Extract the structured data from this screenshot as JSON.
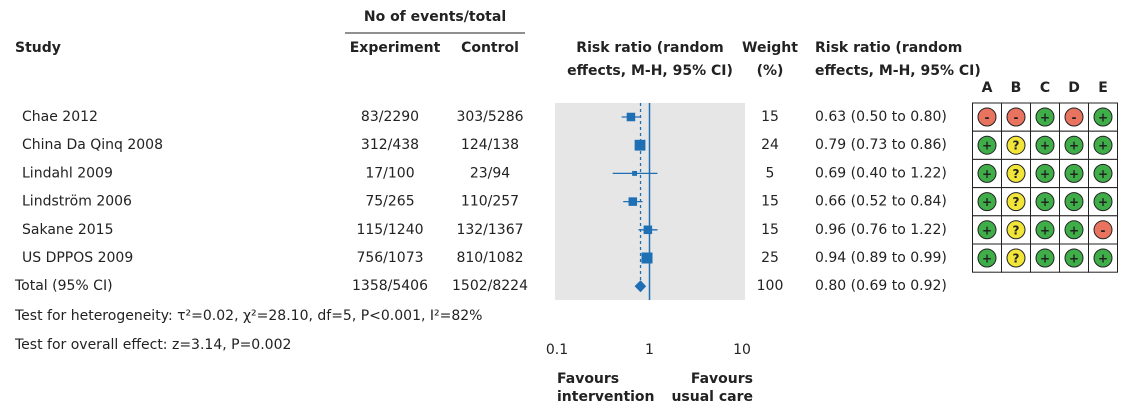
{
  "chart_data": {
    "type": "forest",
    "header_group": "No of events/total",
    "headers": {
      "study": "Study",
      "experiment": "Experiment",
      "control": "Control",
      "plot": [
        "Risk ratio (random",
        "effects, M-H, 95% CI)"
      ],
      "weight": [
        "Weight",
        "(%)"
      ],
      "estimate": [
        "Risk ratio (random",
        "effects, M-H, 95% CI)"
      ],
      "bias_domains": [
        "A",
        "B",
        "C",
        "D",
        "E"
      ]
    },
    "studies": [
      "Chae 2012",
      "China Da Qinq 2008",
      "Lindahl 2009",
      "Lindström 2006",
      "Sakane 2015",
      "US DPPOS 2009"
    ],
    "experiment": [
      "83/2290",
      "312/438",
      "17/100",
      "75/265",
      "115/1240",
      "756/1073"
    ],
    "control": [
      "303/5286",
      "124/138",
      "23/94",
      "110/257",
      "132/1367",
      "810/1082"
    ],
    "weights": [
      15,
      24,
      5,
      15,
      15,
      25
    ],
    "estimates": [
      0.63,
      0.79,
      0.69,
      0.66,
      0.96,
      0.94
    ],
    "lower": [
      0.5,
      0.73,
      0.4,
      0.52,
      0.76,
      0.89
    ],
    "upper": [
      0.8,
      0.86,
      1.22,
      0.84,
      1.22,
      0.99
    ],
    "value_labels": [
      "0.63 (0.50 to 0.80)",
      "0.79 (0.73 to 0.86)",
      "0.69 (0.40 to 1.22)",
      "0.66 (0.52 to 0.84)",
      "0.96 (0.76 to 1.22)",
      "0.94 (0.89 to 0.99)"
    ],
    "risk_of_bias": [
      [
        "-",
        "-",
        "+",
        "-",
        "+"
      ],
      [
        "+",
        "?",
        "+",
        "+",
        "+"
      ],
      [
        "+",
        "?",
        "+",
        "+",
        "+"
      ],
      [
        "+",
        "?",
        "+",
        "+",
        "+"
      ],
      [
        "+",
        "?",
        "+",
        "+",
        "-"
      ],
      [
        "+",
        "?",
        "+",
        "+",
        "+"
      ]
    ],
    "bias_colors": {
      "+": "#3fae49",
      "?": "#f2e53a",
      "-": "#e8735f"
    },
    "total": {
      "label": "Total (95% CI)",
      "experiment": "1358/5406",
      "control": "1502/8224",
      "weight": 100,
      "estimate": 0.8,
      "lower": 0.69,
      "upper": 0.92,
      "value_label": "0.80 (0.69 to 0.92)"
    },
    "heterogeneity": "Test for heterogeneity: τ²=0.02, χ²=28.10, df=5, P<0.001, I²=82%",
    "overall_effect": "Test for overall effect: z=3.14, P=0.002",
    "xlim": [
      0.1,
      10
    ],
    "xticks": [
      0.1,
      1,
      10
    ],
    "log_x": true,
    "reference_line": 1,
    "favours_left": [
      "Favours",
      "intervention"
    ],
    "favours_right": [
      "Favours",
      "usual care"
    ],
    "color": "#1f6fb5",
    "panel_color": "#e6e6e6"
  }
}
